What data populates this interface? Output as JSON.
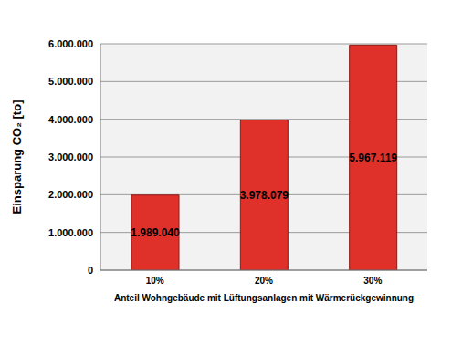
{
  "chart_data": {
    "type": "bar",
    "categories": [
      "10%",
      "20%",
      "30%"
    ],
    "values": [
      1989040,
      3978079,
      5967119
    ],
    "value_labels": [
      "1.989.040",
      "3.978.079",
      "5.967.119"
    ],
    "data_labels": true,
    "color": "#e0302a",
    "x_label": "Anteil Wohngebäude mit Lüftungsanlagen mit Wärmerückgewinnung",
    "y_label": "Einsparung CO₂ [to]",
    "ylim": [
      0,
      6000000
    ],
    "yticks": [
      0,
      {
        "value": 1000000,
        "label": "1.000.000"
      },
      {
        "value": 2000000,
        "label": "2.000.000"
      },
      {
        "value": 3000000,
        "label": "3.000.000"
      },
      {
        "value": 4000000,
        "label": "4.000.000"
      },
      {
        "value": 5000000,
        "label": "5.000.000"
      },
      {
        "value": 6000000,
        "label": "6.000.000"
      }
    ],
    "grid": true
  }
}
